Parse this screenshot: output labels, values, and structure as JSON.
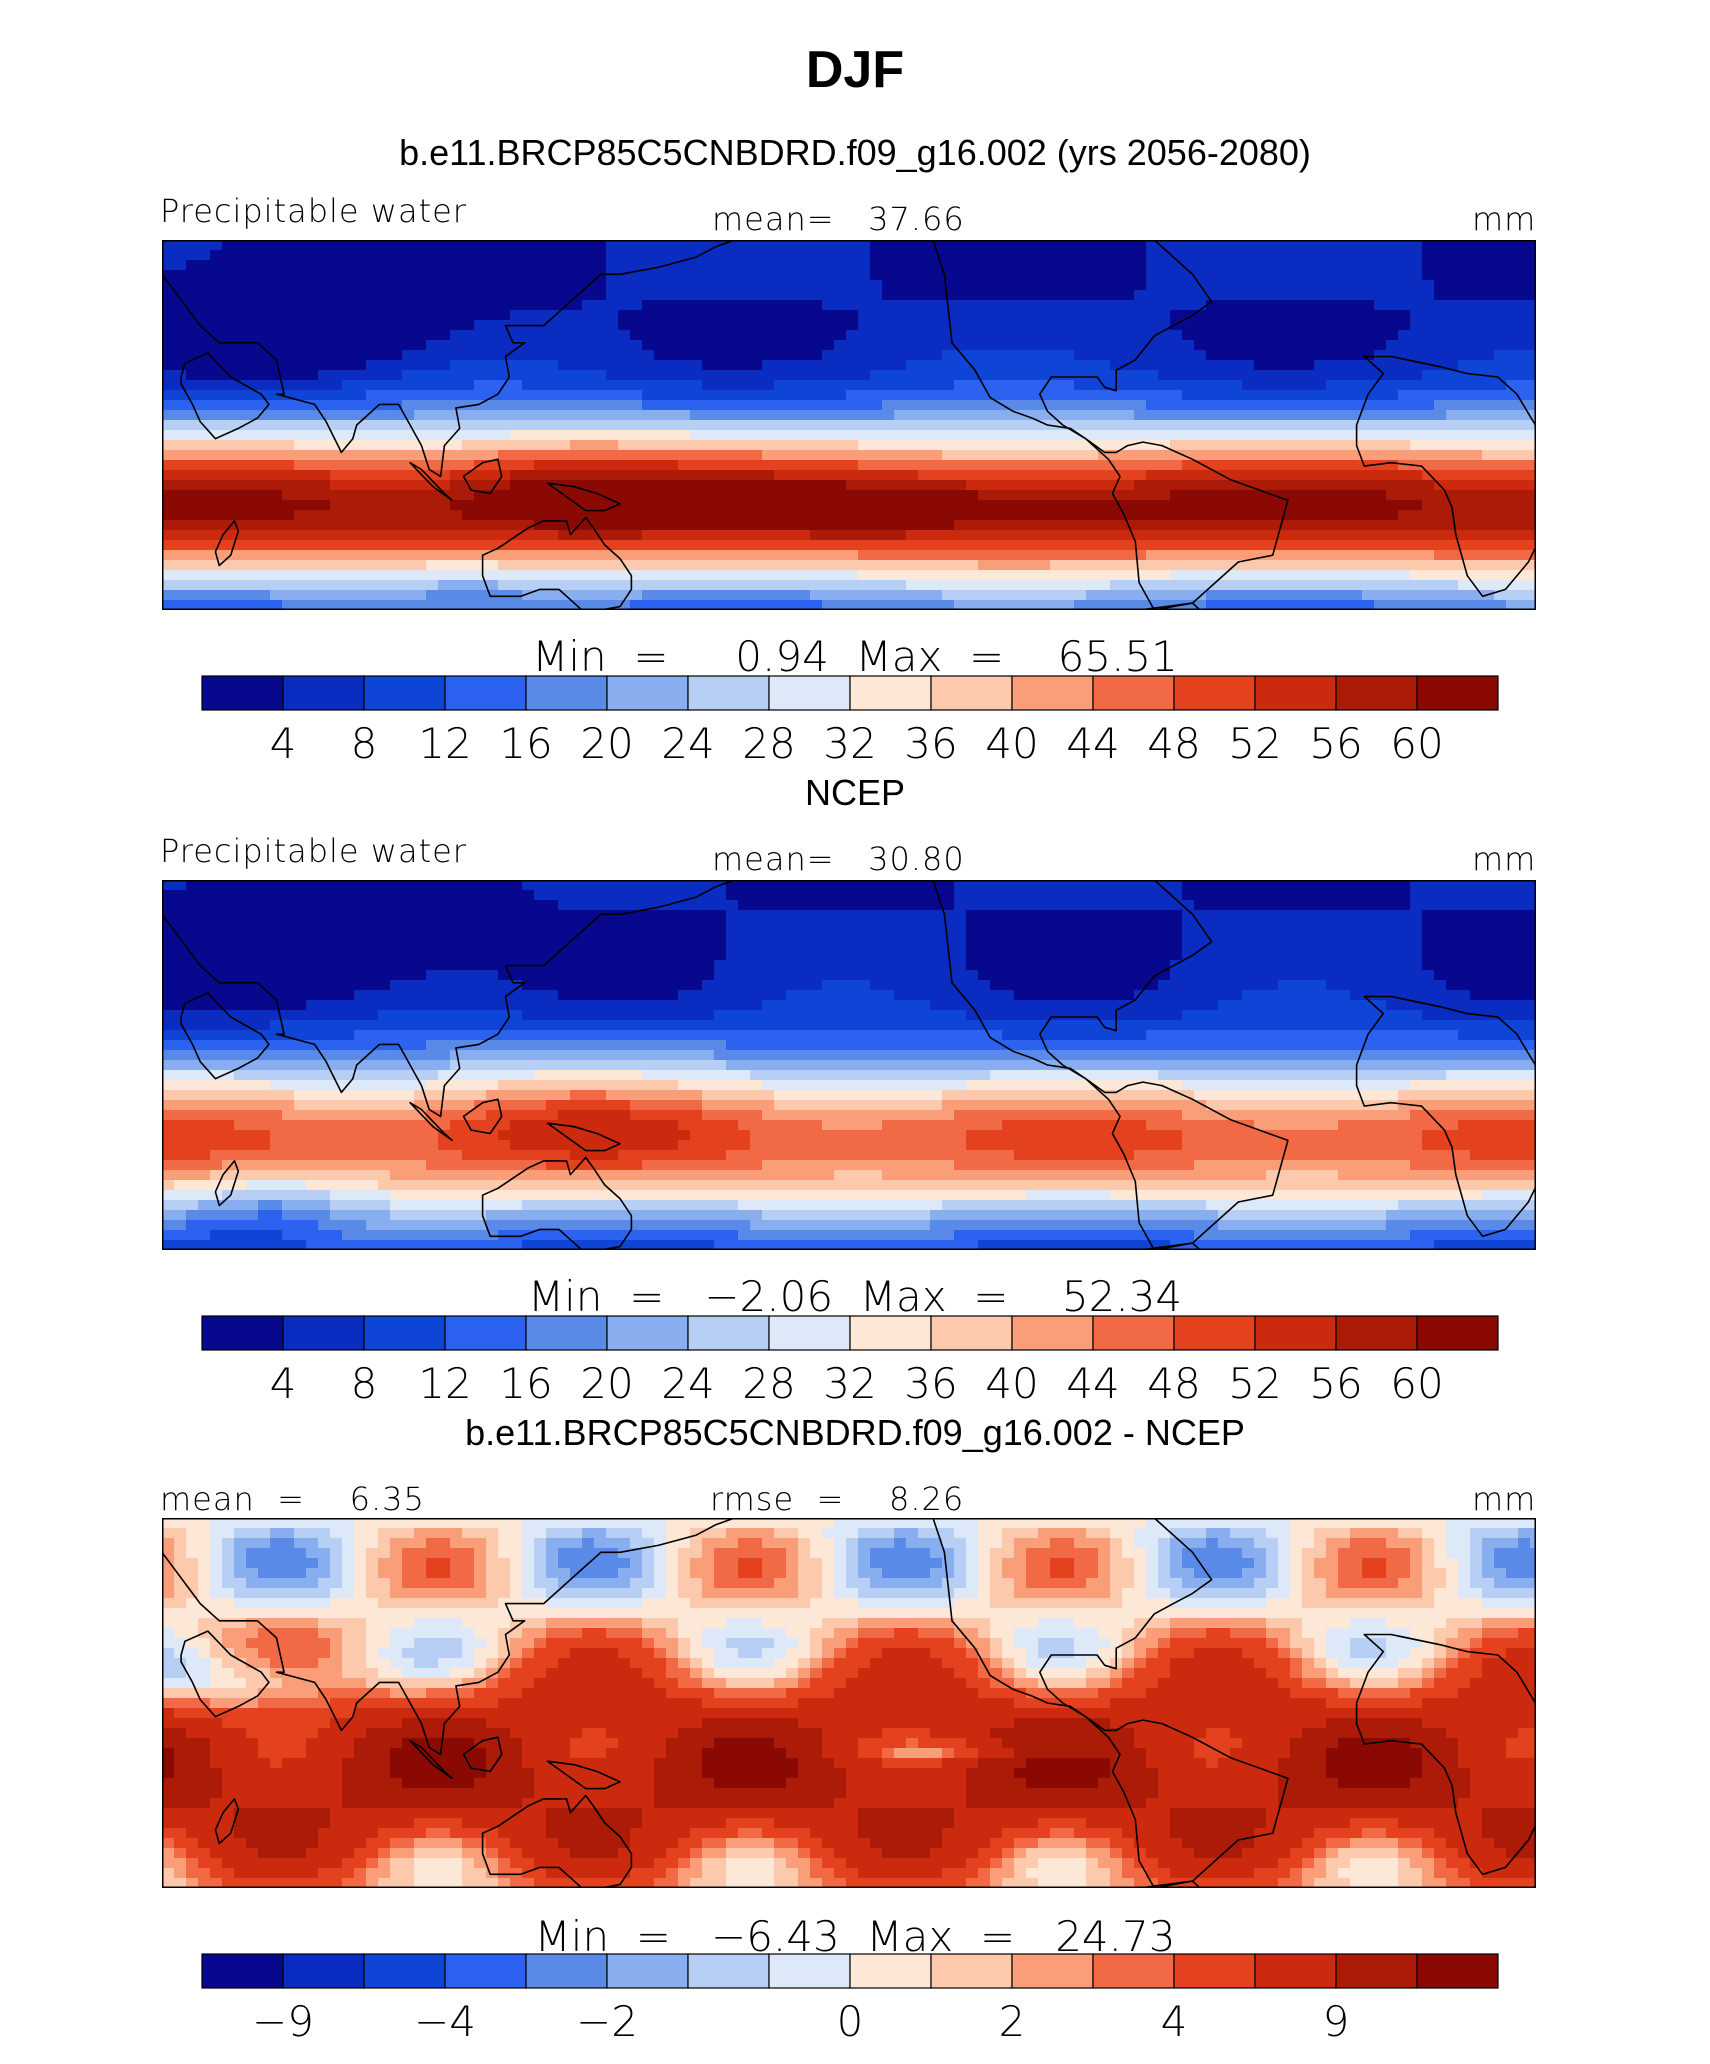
{
  "title": "DJF",
  "colors": [
    "#08088f",
    "#0a2cc0",
    "#0f45d6",
    "#2b62f0",
    "#5a8ae8",
    "#89aef0",
    "#b8cff5",
    "#dde8f8",
    "#fde8d8",
    "#fcc9ac",
    "#fa9e7a",
    "#f26a45",
    "#e4411f",
    "#cc2a0e",
    "#ac1a08",
    "#8a0a03"
  ],
  "panels": [
    {
      "title": "b.e11.BRCP85C5CNBDRD.f09_g16.002 (yrs 2056-2080)",
      "left_label": "Precipitable water",
      "center_label": "mean=   37.66",
      "right_label": "mm",
      "minmax": "Min  =     0.94  Max  =    65.51",
      "colorbar_ticks": [
        "4",
        "8",
        "12",
        "16",
        "20",
        "24",
        "28",
        "32",
        "36",
        "40",
        "44",
        "48",
        "52",
        "56",
        "60"
      ],
      "map_style": "model"
    },
    {
      "title": "NCEP",
      "left_label": "Precipitable water",
      "center_label": "mean=   30.80",
      "right_label": "mm",
      "minmax": "Min  =   −2.06  Max  =    52.34",
      "colorbar_ticks": [
        "4",
        "8",
        "12",
        "16",
        "20",
        "24",
        "28",
        "32",
        "36",
        "40",
        "44",
        "48",
        "52",
        "56",
        "60"
      ],
      "map_style": "obs"
    },
    {
      "title": "b.e11.BRCP85C5CNBDRD.f09_g16.002 - NCEP",
      "left_label": "mean  =    6.35",
      "center_label": "rmse  =    8.26",
      "right_label": "mm",
      "minmax": "Min  =   −6.43  Max  =   24.73",
      "colorbar_ticks": [
        "−9",
        "−4",
        "−2",
        "0",
        "2",
        "4",
        "9"
      ],
      "map_style": "diff"
    }
  ],
  "chart_data": [
    {
      "type": "heatmap",
      "title": "b.e11.BRCP85C5CNBDRD.f09_g16.002 (yrs 2056-2080)",
      "variable": "Precipitable water",
      "units": "mm",
      "mean": 37.66,
      "min": 0.94,
      "max": 65.51,
      "contour_levels": [
        4,
        8,
        12,
        16,
        20,
        24,
        28,
        32,
        36,
        40,
        44,
        48,
        52,
        56,
        60
      ]
    },
    {
      "type": "heatmap",
      "title": "NCEP",
      "variable": "Precipitable water",
      "units": "mm",
      "mean": 30.8,
      "min": -2.06,
      "max": 52.34,
      "contour_levels": [
        4,
        8,
        12,
        16,
        20,
        24,
        28,
        32,
        36,
        40,
        44,
        48,
        52,
        56,
        60
      ]
    },
    {
      "type": "heatmap",
      "title": "b.e11.BRCP85C5CNBDRD.f09_g16.002 - NCEP",
      "units": "mm",
      "mean": 6.35,
      "rmse": 8.26,
      "min": -6.43,
      "max": 24.73,
      "contour_labels": [
        -9,
        -4,
        -2,
        0,
        2,
        4,
        9
      ]
    }
  ]
}
